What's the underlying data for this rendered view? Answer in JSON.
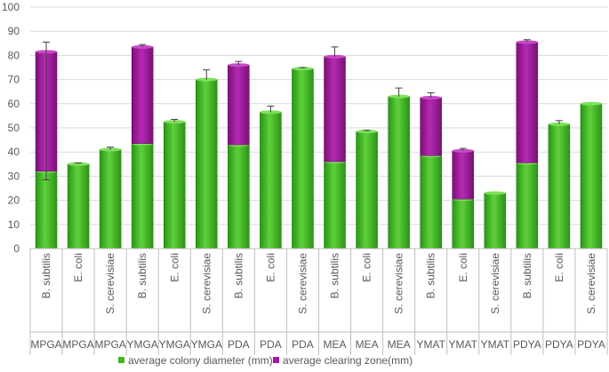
{
  "chart_data": {
    "type": "bar",
    "stacked": true,
    "title": "",
    "xlabel": "",
    "ylabel": "",
    "ylim": [
      0,
      100
    ],
    "yticks": [
      0,
      10,
      20,
      30,
      40,
      50,
      60,
      70,
      80,
      90,
      100
    ],
    "grid": true,
    "legend_position": "bottom",
    "categories": [
      {
        "organism": "B. subtilis",
        "medium": "MPGA"
      },
      {
        "organism": "E. coli",
        "medium": "MPGA"
      },
      {
        "organism": "S. cerevisiae",
        "medium": "MPGA"
      },
      {
        "organism": "B. subtilis",
        "medium": "YMGA"
      },
      {
        "organism": "E. coli",
        "medium": "YMGA"
      },
      {
        "organism": "S. cerevisiae",
        "medium": "YMGA"
      },
      {
        "organism": "B. subtilis",
        "medium": "PDA"
      },
      {
        "organism": "E. coli",
        "medium": "PDA"
      },
      {
        "organism": "S. cerevisiae",
        "medium": "PDA"
      },
      {
        "organism": "B. subtilis",
        "medium": "MEA"
      },
      {
        "organism": "E. coli",
        "medium": "MEA"
      },
      {
        "organism": "S. cerevisiae",
        "medium": "MEA"
      },
      {
        "organism": "B. subtilis",
        "medium": "YMAT"
      },
      {
        "organism": "E. coli",
        "medium": "YMAT"
      },
      {
        "organism": "S. cerevisiae",
        "medium": "YMAT"
      },
      {
        "organism": "B. subtilis",
        "medium": "PDYA"
      },
      {
        "organism": "E. coli",
        "medium": "PDYA"
      },
      {
        "organism": "S. cerevisiae",
        "medium": "PDYA"
      }
    ],
    "series": [
      {
        "name": "average colony diameter (mm)",
        "color": "#3cb820",
        "values": [
          32,
          35,
          41,
          43.5,
          52.5,
          70,
          43,
          56.5,
          74.5,
          36,
          48.5,
          63,
          38.5,
          20.5,
          23,
          35.5,
          51.5,
          60
        ]
      },
      {
        "name": "average clearing zone(mm)",
        "color": "#a0199e",
        "values": [
          49.5,
          0,
          0,
          40,
          0,
          0,
          33,
          0,
          0,
          43.5,
          0,
          0,
          24,
          20,
          0,
          50,
          0,
          0
        ]
      }
    ],
    "error_bars_top": [
      85.5,
      35.5,
      42,
      84.5,
      53.5,
      74,
      77.5,
      59,
      75,
      83.5,
      49,
      66.5,
      64.5,
      41.5,
      null,
      86.5,
      53,
      null
    ],
    "error_bars_bottom": [
      28.5,
      null,
      null,
      null,
      null,
      null,
      null,
      null,
      null,
      null,
      null,
      null,
      null,
      null,
      null,
      null,
      null,
      null
    ]
  }
}
